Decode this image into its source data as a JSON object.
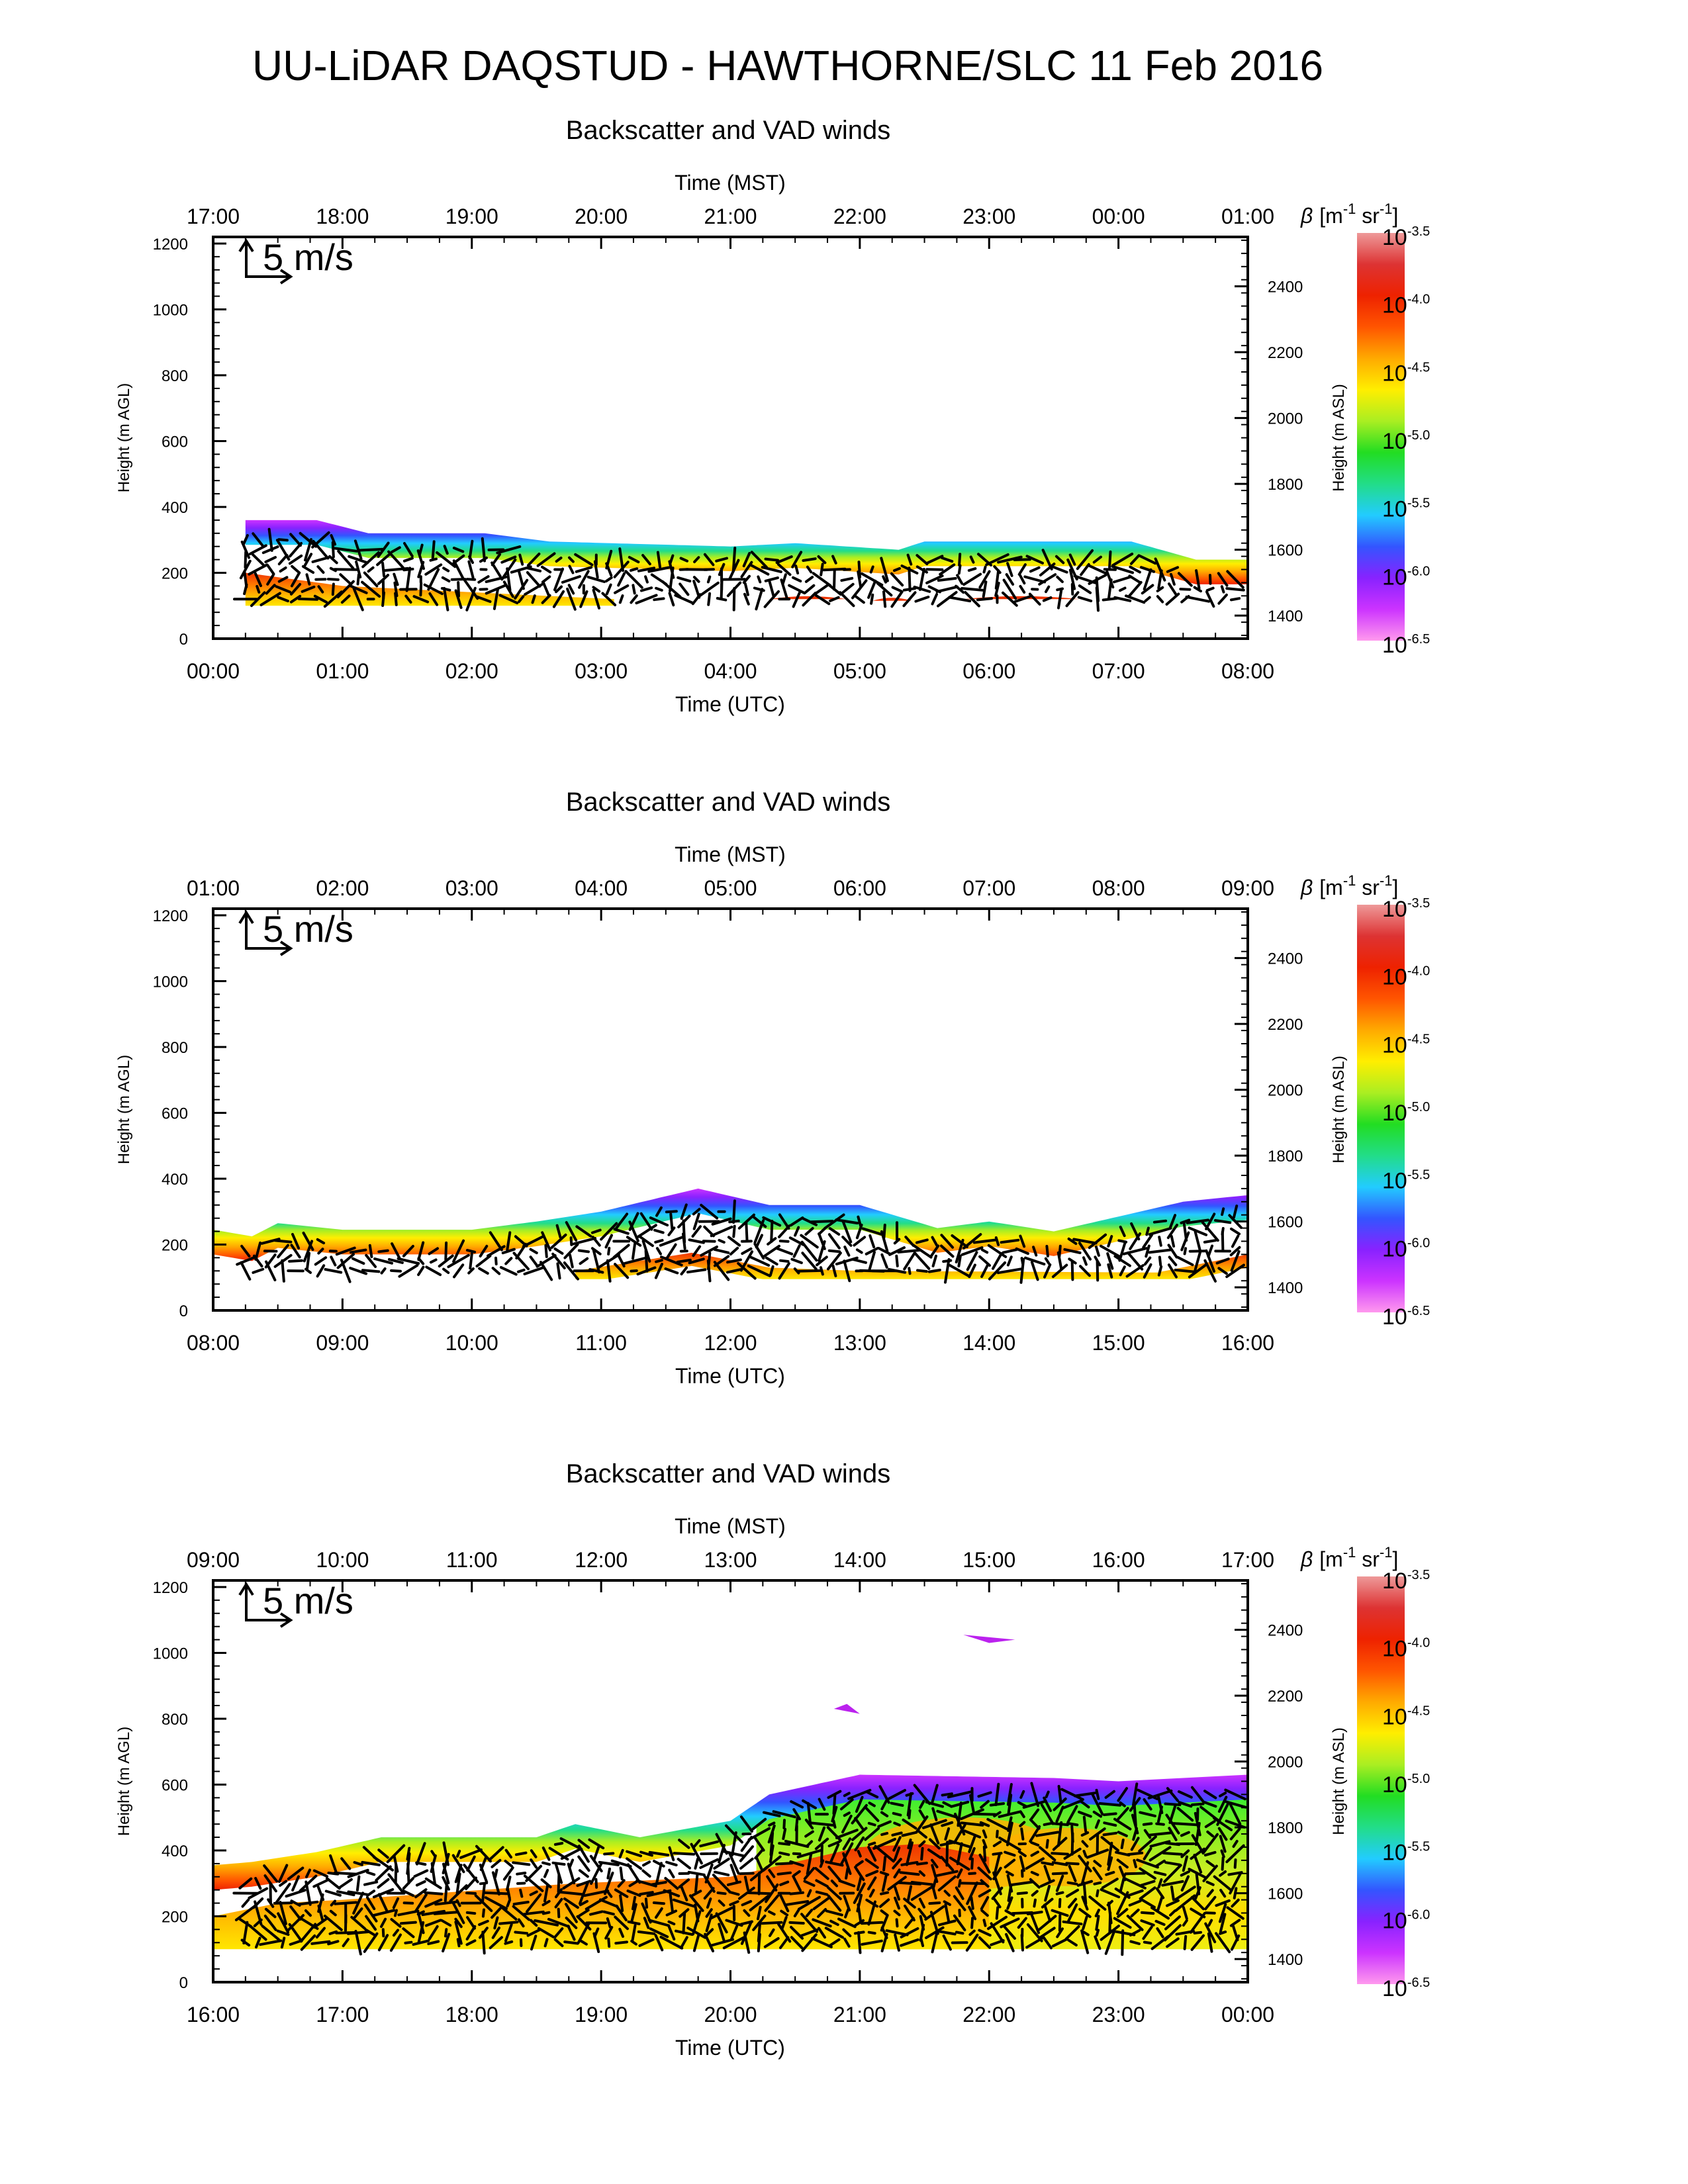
{
  "page": {
    "title": "UU-LiDAR DAQSTUD - HAWTHORNE/SLC 11 Feb 2016"
  },
  "colors": {
    "background": "#ffffff",
    "axis": "#000000",
    "arrow": "#000000",
    "colormap": [
      "#ff99ee",
      "#cc33ff",
      "#8822ff",
      "#3355ff",
      "#22ccff",
      "#22dd88",
      "#22dd22",
      "#aaee22",
      "#ffee00",
      "#ffaa00",
      "#ff5500",
      "#ee2200",
      "#dd3333",
      "#ee9999"
    ]
  },
  "colorbar": {
    "label_symbol": "β",
    "label_unit_1": "[m",
    "label_exp_1": "-1",
    "label_unit_2": " sr",
    "label_exp_2": "-1",
    "label_close": "]",
    "ticks": [
      {
        "base": "10",
        "exp": "-3.5"
      },
      {
        "base": "10",
        "exp": "-4.0"
      },
      {
        "base": "10",
        "exp": "-4.5"
      },
      {
        "base": "10",
        "exp": "-5.0"
      },
      {
        "base": "10",
        "exp": "-5.5"
      },
      {
        "base": "10",
        "exp": "-6.0"
      },
      {
        "base": "10",
        "exp": "-6.5"
      }
    ]
  },
  "chart_data": [
    {
      "type": "heatmap",
      "title": "Backscatter and VAD winds",
      "xlabel_bottom": "Time (UTC)",
      "xlabel_top": "Time (MST)",
      "ylabel_left": "Height (m AGL)",
      "ylabel_right": "Height (m ASL)",
      "wind_scale_label": "5 m/s",
      "utc_ticks": [
        "00:00",
        "01:00",
        "02:00",
        "03:00",
        "04:00",
        "05:00",
        "06:00",
        "07:00",
        "08:00"
      ],
      "mst_ticks": [
        "17:00",
        "18:00",
        "19:00",
        "20:00",
        "21:00",
        "22:00",
        "23:00",
        "00:00",
        "01:00"
      ],
      "y_ticks": [
        "0",
        "200",
        "400",
        "600",
        "800",
        "1000",
        "1200"
      ],
      "y_right_ticks": [
        "1400",
        "1600",
        "1800",
        "2000",
        "2200",
        "2400"
      ],
      "ylim_agl": [
        0,
        1220
      ],
      "ylim_asl": [
        1330,
        2550
      ],
      "xlim_hours_utc": [
        0,
        8
      ],
      "layer_top_height": {
        "hours": [
          0.25,
          0.8,
          1.2,
          2.1,
          2.6,
          4.0,
          4.5,
          5.3,
          5.5,
          7.1,
          7.6,
          8.0
        ],
        "height": [
          360,
          360,
          320,
          320,
          295,
          280,
          290,
          270,
          295,
          295,
          240,
          240
        ]
      },
      "lower_feature_top_height": {
        "hours": [
          0.25,
          1.0,
          3.1
        ],
        "height": [
          200,
          160,
          120
        ]
      },
      "lower_core": true,
      "has_upper_patches": false
    },
    {
      "type": "heatmap",
      "title": "Backscatter and VAD winds",
      "xlabel_bottom": "Time (UTC)",
      "xlabel_top": "Time (MST)",
      "ylabel_left": "Height (m AGL)",
      "ylabel_right": "Height (m ASL)",
      "wind_scale_label": "5 m/s",
      "utc_ticks": [
        "08:00",
        "09:00",
        "10:00",
        "11:00",
        "12:00",
        "13:00",
        "14:00",
        "15:00",
        "16:00"
      ],
      "mst_ticks": [
        "01:00",
        "02:00",
        "03:00",
        "04:00",
        "05:00",
        "06:00",
        "07:00",
        "08:00",
        "09:00"
      ],
      "y_ticks": [
        "0",
        "200",
        "400",
        "600",
        "800",
        "1000",
        "1200"
      ],
      "y_right_ticks": [
        "1400",
        "1600",
        "1800",
        "2000",
        "2200",
        "2400"
      ],
      "ylim_agl": [
        0,
        1220
      ],
      "ylim_asl": [
        1330,
        2550
      ],
      "xlim_hours_utc": [
        8,
        16
      ],
      "layer_top_height": {
        "hours": [
          8.0,
          8.3,
          8.5,
          9.0,
          10.0,
          10.5,
          11.0,
          11.75,
          12.3,
          13.0,
          13.6,
          14.0,
          14.5,
          15.0,
          15.5,
          16.0
        ],
        "height": [
          245,
          225,
          265,
          245,
          245,
          270,
          300,
          370,
          320,
          320,
          250,
          270,
          240,
          285,
          330,
          350
        ]
      },
      "lower_feature_top_height": {
        "hours": [
          10.8,
          11.7,
          12.3,
          13.0,
          15.3,
          16.0
        ],
        "height": [
          120,
          175,
          130,
          120,
          115,
          170
        ]
      },
      "lower_core": false,
      "has_upper_patches": false
    },
    {
      "type": "heatmap",
      "title": "Backscatter and VAD winds",
      "xlabel_bottom": "Time (UTC)",
      "xlabel_top": "Time (MST)",
      "ylabel_left": "Height (m AGL)",
      "ylabel_right": "Height (m ASL)",
      "wind_scale_label": "5 m/s",
      "utc_ticks": [
        "16:00",
        "17:00",
        "18:00",
        "19:00",
        "20:00",
        "21:00",
        "22:00",
        "23:00",
        "00:00"
      ],
      "mst_ticks": [
        "09:00",
        "10:00",
        "11:00",
        "12:00",
        "13:00",
        "14:00",
        "15:00",
        "16:00",
        "17:00"
      ],
      "y_ticks": [
        "0",
        "200",
        "400",
        "600",
        "800",
        "1000",
        "1200"
      ],
      "y_right_ticks": [
        "1400",
        "1600",
        "1800",
        "2000",
        "2200",
        "2400"
      ],
      "ylim_agl": [
        0,
        1220
      ],
      "ylim_asl": [
        1330,
        2550
      ],
      "xlim_hours_utc": [
        16,
        24
      ],
      "layer_top_height": {
        "hours": [
          16.0,
          16.3,
          16.8,
          17.3,
          18.5,
          18.8,
          19.3,
          20.0,
          20.3,
          21.0,
          22.5,
          23.0,
          24.0
        ],
        "height": [
          355,
          365,
          395,
          440,
          440,
          480,
          440,
          490,
          570,
          630,
          620,
          610,
          630
        ]
      },
      "lower_feature_top_height": {
        "hours": [
          16.0,
          16.5,
          17.0,
          18.8,
          20.0,
          21.0,
          21.5,
          22.0
        ],
        "height": [
          200,
          240,
          250,
          300,
          320,
          410,
          420,
          380
        ]
      },
      "lower_core": true,
      "has_upper_patches": true,
      "upper_patches": [
        {
          "hours": [
            21.8,
            22.2
          ],
          "height": [
            1055,
            1030
          ]
        },
        {
          "hours": [
            20.8,
            21.0
          ],
          "height": [
            830,
            845
          ]
        }
      ]
    }
  ]
}
